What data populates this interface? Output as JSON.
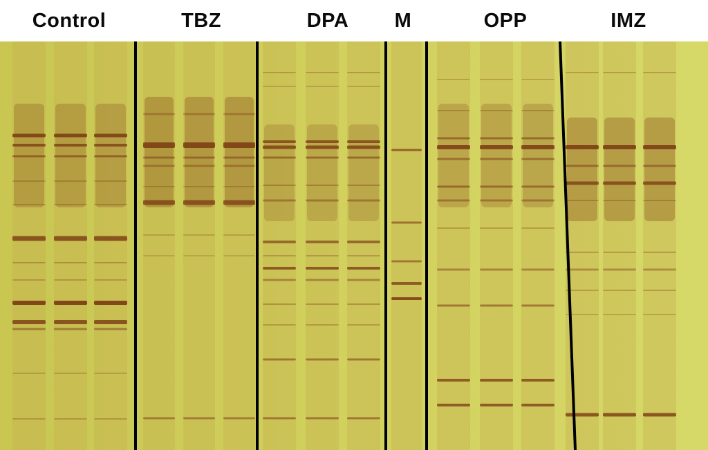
{
  "groups": [
    "Control",
    "TBZ",
    "DPA",
    "M",
    "OPP",
    "IMZ"
  ],
  "background_color": "#d0d05a",
  "band_color": "#7a3a12",
  "divider_color": "#000000"
}
